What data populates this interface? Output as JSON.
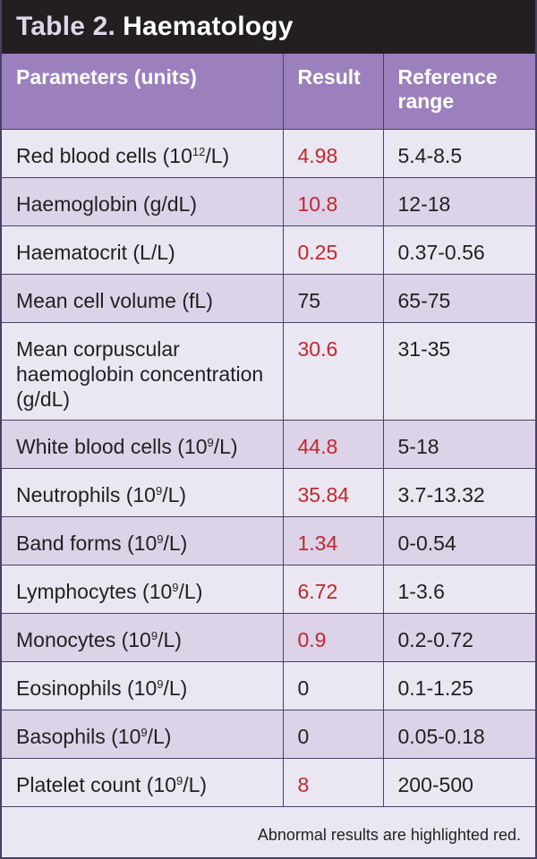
{
  "title": {
    "label": "Table 2.",
    "text": "Haematology"
  },
  "headers": {
    "parameter": "Parameters (units)",
    "result": "Result",
    "reference": "Reference range"
  },
  "rows": [
    {
      "name": "Red blood cells (10",
      "sup": "12",
      "unit": "/L)",
      "result": "4.98",
      "reference": "5.4-8.5",
      "abnormal": true
    },
    {
      "name": "Haemoglobin (g/dL)",
      "sup": "",
      "unit": "",
      "result": "10.8",
      "reference": "12-18",
      "abnormal": true
    },
    {
      "name": "Haematocrit (L/L)",
      "sup": "",
      "unit": "",
      "result": "0.25",
      "reference": "0.37-0.56",
      "abnormal": true
    },
    {
      "name": "Mean cell volume (fL)",
      "sup": "",
      "unit": "",
      "result": "75",
      "reference": "65-75",
      "abnormal": false
    },
    {
      "name": "Mean corpuscular haemoglobin concentration (g/dL)",
      "sup": "",
      "unit": "",
      "result": "30.6",
      "reference": "31-35",
      "abnormal": true
    },
    {
      "name": "White blood cells (10",
      "sup": "9",
      "unit": "/L)",
      "result": "44.8",
      "reference": "5-18",
      "abnormal": true
    },
    {
      "name": "Neutrophils (10",
      "sup": "9",
      "unit": "/L)",
      "result": "35.84",
      "reference": "3.7-13.32",
      "abnormal": true
    },
    {
      "name": "Band forms (10",
      "sup": "9",
      "unit": "/L)",
      "result": "1.34",
      "reference": "0-0.54",
      "abnormal": true
    },
    {
      "name": "Lymphocytes (10",
      "sup": "9",
      "unit": "/L)",
      "result": "6.72",
      "reference": "1-3.6",
      "abnormal": true
    },
    {
      "name": "Monocytes (10",
      "sup": "9",
      "unit": "/L)",
      "result": "0.9",
      "reference": "0.2-0.72",
      "abnormal": true
    },
    {
      "name": "Eosinophils (10",
      "sup": "9",
      "unit": "/L)",
      "result": "0",
      "reference": "0.1-1.25",
      "abnormal": false
    },
    {
      "name": "Basophils (10",
      "sup": "9",
      "unit": "/L)",
      "result": "0",
      "reference": "0.05-0.18",
      "abnormal": false
    },
    {
      "name": "Platelet count (10",
      "sup": "9",
      "unit": "/L)",
      "result": "8",
      "reference": "200-500",
      "abnormal": true
    }
  ],
  "footnote": "Abnormal results are highlighted red.",
  "colors": {
    "header_bg": "#9b80bd",
    "title_bg": "#231f20",
    "abnormal": "#c1272d",
    "row_light": "#ebe7f2",
    "row_dark": "#dcd3e8"
  }
}
